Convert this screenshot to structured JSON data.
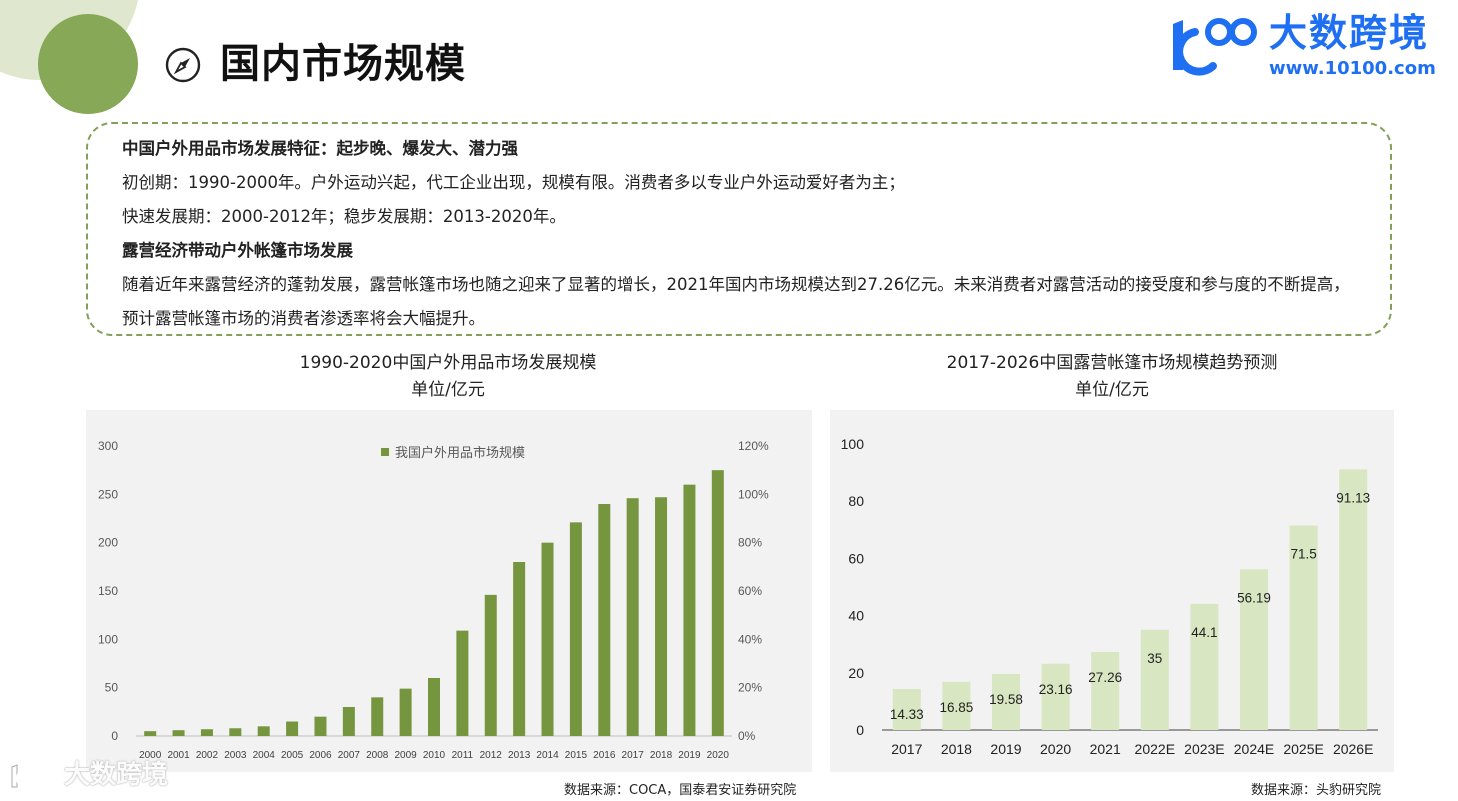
{
  "header": {
    "title": "国内市场规模",
    "logo_name": "大数跨境",
    "logo_url": "www.10100.com",
    "watermark": "大数跨境"
  },
  "info": {
    "heading1": "中国户外用品市场发展特征：起步晚、爆发大、潜力强",
    "line1": "初创期：1990-2000年。户外运动兴起，代工企业出现，规模有限。消费者多以专业户外运动爱好者为主；",
    "line2": "快速发展期：2000-2012年；稳步发展期：2013-2020年。",
    "heading2": "露营经济带动户外帐篷市场发展",
    "para": "随着近年来露营经济的蓬勃发展，露营帐篷市场也随之迎来了显著的增长，2021年国内市场规模达到27.26亿元。未来消费者对露营活动的接受度和参与度的不断提高，预计露营帐篷市场的消费者渗透率将会大幅提升。"
  },
  "colors": {
    "accent_green": "#86a857",
    "bar_dark": "#76953f",
    "bar_light": "#d8e6c1",
    "logo_blue": "#1e6ff2"
  },
  "chart_data": [
    {
      "type": "bar",
      "title": "1990-2020中国户外用品市场发展规模",
      "subtitle": "单位/亿元",
      "categories": [
        "2000",
        "2001",
        "2002",
        "2003",
        "2004",
        "2005",
        "2006",
        "2007",
        "2008",
        "2009",
        "2010",
        "2011",
        "2012",
        "2013",
        "2014",
        "2015",
        "2016",
        "2017",
        "2018",
        "2019",
        "2020"
      ],
      "series": [
        {
          "name": "我国户外用品市场规模",
          "values": [
            5,
            6,
            7,
            8,
            10,
            15,
            20,
            30,
            40,
            49,
            60,
            109,
            146,
            180,
            200,
            221,
            240,
            246,
            247,
            260,
            275
          ]
        }
      ],
      "ylim": [
        0,
        300
      ],
      "yticks": [
        "0",
        "50",
        "100",
        "150",
        "200",
        "250",
        "300"
      ],
      "y2ticks": [
        "0%",
        "20%",
        "40%",
        "60%",
        "80%",
        "100%",
        "120%"
      ],
      "legend": "top-center",
      "grid": false,
      "source": "数据来源：COCA，国泰君安证券研究院"
    },
    {
      "type": "bar",
      "title": "2017-2026中国露营帐篷市场规模趋势预测",
      "subtitle": "单位/亿元",
      "categories": [
        "2017",
        "2018",
        "2019",
        "2020",
        "2021",
        "2022E",
        "2023E",
        "2024E",
        "2025E",
        "2026E"
      ],
      "series": [
        {
          "values": [
            14.33,
            16.85,
            19.58,
            23.16,
            27.26,
            35,
            44.1,
            56.19,
            71.5,
            91.13
          ]
        }
      ],
      "labels": [
        "14.33",
        "16.85",
        "19.58",
        "23.16",
        "27.26",
        "35",
        "44.1",
        "56.19",
        "71.5",
        "91.13"
      ],
      "ylim": [
        0,
        100
      ],
      "yticks": [
        "0",
        "20",
        "40",
        "60",
        "80",
        "100"
      ],
      "grid": false,
      "source": "数据来源：头豹研究院"
    }
  ]
}
